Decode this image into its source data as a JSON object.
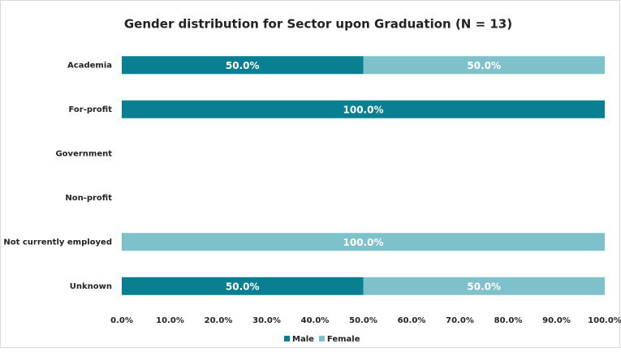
{
  "chart_data": {
    "type": "stacked_barh",
    "title": "Gender distribution for Sector upon Graduation (N = 13)",
    "categories": [
      "Academia",
      "For-profit",
      "Government",
      "Non-profit",
      "Not currently employed",
      "Unknown"
    ],
    "series": [
      {
        "name": "Male",
        "color": "#0a7f92",
        "values": [
          50,
          100,
          null,
          null,
          0,
          50
        ],
        "value_labels": [
          "50.0%",
          "100.0%",
          null,
          null,
          null,
          "50.0%"
        ]
      },
      {
        "name": "Female",
        "color": "#7fc1cb",
        "values": [
          50,
          0,
          null,
          null,
          100,
          50
        ],
        "value_labels": [
          "50.0%",
          null,
          null,
          null,
          "100.0%",
          "50.0%"
        ]
      }
    ],
    "xlim": [
      0,
      100
    ],
    "xticks": [
      {
        "value": 0,
        "label": "0.0%"
      },
      {
        "value": 10,
        "label": "10.0%"
      },
      {
        "value": 20,
        "label": "20.0%"
      },
      {
        "value": 30,
        "label": "30.0%"
      },
      {
        "value": 40,
        "label": "40.0%"
      },
      {
        "value": 50,
        "label": "50.0%"
      },
      {
        "value": 60,
        "label": "60.0%"
      },
      {
        "value": 70,
        "label": "70.0%"
      },
      {
        "value": 80,
        "label": "80.0%"
      },
      {
        "value": 90,
        "label": "90.0%"
      },
      {
        "value": 100,
        "label": "100.0%"
      }
    ],
    "grid": false,
    "legend": "bottom"
  }
}
